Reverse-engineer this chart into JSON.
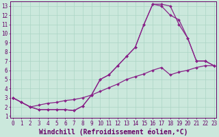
{
  "xlabel": "Windchill (Refroidissement éolien,°C)",
  "background_color": "#cbe8dc",
  "grid_color": "#aad4c4",
  "line_color": "#882288",
  "xticks": [
    0,
    1,
    2,
    3,
    4,
    5,
    6,
    7,
    8,
    9,
    10,
    11,
    12,
    13,
    14,
    15,
    16,
    17,
    18,
    19,
    20,
    21,
    22,
    23
  ],
  "yticks": [
    1,
    2,
    3,
    4,
    5,
    6,
    7,
    8,
    9,
    10,
    11,
    12,
    13
  ],
  "line1_x": [
    0,
    1,
    2,
    3,
    4,
    5,
    6,
    7,
    8,
    9,
    10,
    11,
    12,
    13,
    14,
    15,
    16,
    17,
    18,
    19,
    20,
    21,
    22,
    23
  ],
  "line1_y": [
    3,
    2.5,
    2.0,
    1.7,
    1.7,
    1.7,
    1.7,
    1.6,
    2.1,
    3.3,
    5.0,
    5.5,
    6.5,
    7.5,
    8.5,
    11.0,
    13.2,
    13.2,
    13.0,
    11.0,
    9.5,
    7.0,
    7.0,
    6.5
  ],
  "line2_x": [
    0,
    1,
    2,
    3,
    4,
    5,
    6,
    7,
    8,
    9,
    10,
    11,
    12,
    13,
    14,
    15,
    16,
    17,
    18,
    19,
    20,
    21,
    22,
    23
  ],
  "line2_y": [
    3,
    2.5,
    2.0,
    1.7,
    1.7,
    1.7,
    1.7,
    1.6,
    2.1,
    3.3,
    5.0,
    5.5,
    6.5,
    7.5,
    8.5,
    11.0,
    13.2,
    13.0,
    12.0,
    11.5,
    9.5,
    7.0,
    7.0,
    6.5
  ],
  "line3_x": [
    0,
    1,
    2,
    3,
    4,
    5,
    6,
    7,
    8,
    9,
    10,
    11,
    12,
    13,
    14,
    15,
    16,
    17,
    18,
    19,
    20,
    21,
    22,
    23
  ],
  "line3_y": [
    3,
    2.5,
    2.0,
    2.2,
    2.4,
    2.5,
    2.7,
    2.8,
    3.0,
    3.3,
    3.7,
    4.1,
    4.5,
    5.0,
    5.3,
    5.6,
    6.0,
    6.3,
    5.5,
    5.8,
    6.0,
    6.3,
    6.5,
    6.5
  ],
  "marker": "D",
  "markersize": 2.0,
  "linewidth": 0.9,
  "font_family": "monospace",
  "tick_fontsize": 5.5,
  "label_fontsize": 7.0,
  "tick_color": "#660066",
  "spine_color": "#660066"
}
